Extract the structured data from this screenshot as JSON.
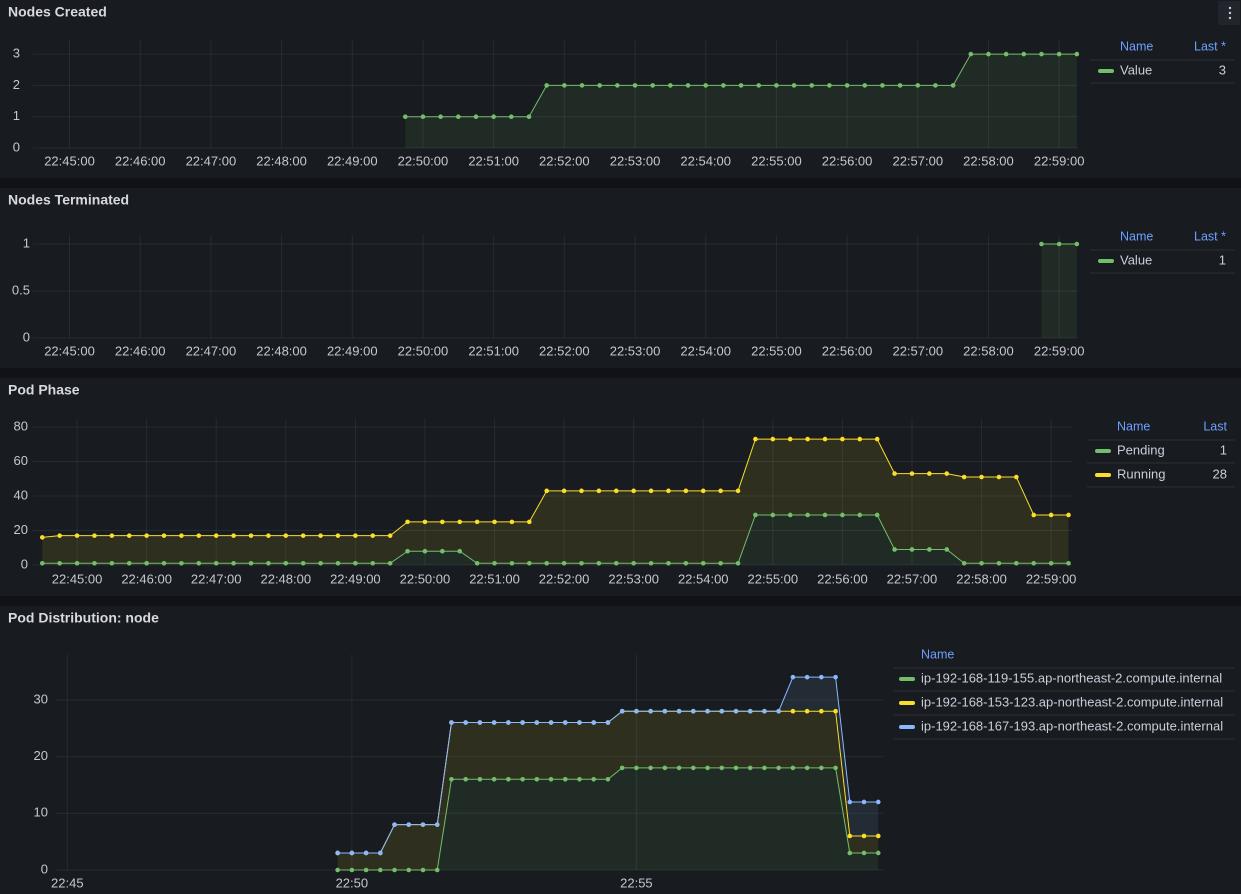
{
  "chart_data": [
    {
      "type": "line",
      "title": "Nodes Created",
      "stacked": false,
      "fill": true,
      "grid": true,
      "x": [
        "22:49:45",
        "22:50:00",
        "22:50:15",
        "22:50:30",
        "22:50:45",
        "22:51:00",
        "22:51:15",
        "22:51:30",
        "22:51:45",
        "22:52:00",
        "22:52:15",
        "22:52:30",
        "22:52:45",
        "22:53:00",
        "22:53:15",
        "22:53:30",
        "22:53:45",
        "22:54:00",
        "22:54:15",
        "22:54:30",
        "22:54:45",
        "22:55:00",
        "22:55:15",
        "22:55:30",
        "22:55:45",
        "22:56:00",
        "22:56:15",
        "22:56:30",
        "22:56:45",
        "22:57:00",
        "22:57:15",
        "22:57:30",
        "22:57:45",
        "22:58:00",
        "22:58:15",
        "22:58:30",
        "22:58:45",
        "22:59:00",
        "22:59:15"
      ],
      "series": [
        {
          "name": "Value",
          "color": "#73bf69",
          "last": 3,
          "values": [
            1,
            1,
            1,
            1,
            1,
            1,
            1,
            1,
            2,
            2,
            2,
            2,
            2,
            2,
            2,
            2,
            2,
            2,
            2,
            2,
            2,
            2,
            2,
            2,
            2,
            2,
            2,
            2,
            2,
            2,
            2,
            2,
            3,
            3,
            3,
            3,
            3,
            3,
            3
          ]
        }
      ],
      "xlim": [
        "22:44:29",
        "22:59:16"
      ],
      "xticks": [
        "22:45:00",
        "22:46:00",
        "22:47:00",
        "22:48:00",
        "22:49:00",
        "22:50:00",
        "22:51:00",
        "22:52:00",
        "22:53:00",
        "22:54:00",
        "22:55:00",
        "22:56:00",
        "22:57:00",
        "22:58:00",
        "22:59:00"
      ],
      "ylim": [
        0,
        3.45
      ],
      "yticks": [
        0,
        1,
        2,
        3
      ],
      "legend_position": "right",
      "legend_columns": [
        "Name",
        "Last *"
      ]
    },
    {
      "type": "line",
      "title": "Nodes Terminated",
      "stacked": false,
      "fill": true,
      "grid": true,
      "x": [
        "22:58:45",
        "22:59:00",
        "22:59:15"
      ],
      "series": [
        {
          "name": "Value",
          "color": "#73bf69",
          "last": 1,
          "values": [
            1,
            1,
            1
          ]
        }
      ],
      "xlim": [
        "22:44:29",
        "22:59:16"
      ],
      "xticks": [
        "22:45:00",
        "22:46:00",
        "22:47:00",
        "22:48:00",
        "22:49:00",
        "22:50:00",
        "22:51:00",
        "22:52:00",
        "22:53:00",
        "22:54:00",
        "22:55:00",
        "22:56:00",
        "22:57:00",
        "22:58:00",
        "22:59:00"
      ],
      "ylim": [
        0,
        1.1
      ],
      "yticks": [
        0,
        0.5,
        1
      ],
      "legend_position": "right",
      "legend_columns": [
        "Name",
        "Last *"
      ]
    },
    {
      "type": "line",
      "title": "Pod Phase",
      "stacked": true,
      "fill": true,
      "grid": true,
      "x": [
        "22:44:30",
        "22:44:45",
        "22:45:00",
        "22:45:15",
        "22:45:30",
        "22:45:45",
        "22:46:00",
        "22:46:15",
        "22:46:30",
        "22:46:45",
        "22:47:00",
        "22:47:15",
        "22:47:30",
        "22:47:45",
        "22:48:00",
        "22:48:15",
        "22:48:30",
        "22:48:45",
        "22:49:00",
        "22:49:15",
        "22:49:30",
        "22:49:45",
        "22:50:00",
        "22:50:15",
        "22:50:30",
        "22:50:45",
        "22:51:00",
        "22:51:15",
        "22:51:30",
        "22:51:45",
        "22:52:00",
        "22:52:15",
        "22:52:30",
        "22:52:45",
        "22:53:00",
        "22:53:15",
        "22:53:30",
        "22:53:45",
        "22:54:00",
        "22:54:15",
        "22:54:30",
        "22:54:45",
        "22:55:00",
        "22:55:15",
        "22:55:30",
        "22:55:45",
        "22:56:00",
        "22:56:15",
        "22:56:30",
        "22:56:45",
        "22:57:00",
        "22:57:15",
        "22:57:30",
        "22:57:45",
        "22:58:00",
        "22:58:15",
        "22:58:30",
        "22:58:45",
        "22:59:00",
        "22:59:15"
      ],
      "series": [
        {
          "name": "Pending",
          "color": "#73bf69",
          "last": 1,
          "values": [
            1,
            1,
            1,
            1,
            1,
            1,
            1,
            1,
            1,
            1,
            1,
            1,
            1,
            1,
            1,
            1,
            1,
            1,
            1,
            1,
            1,
            8,
            8,
            8,
            8,
            1,
            1,
            1,
            1,
            1,
            1,
            1,
            1,
            1,
            1,
            1,
            1,
            1,
            1,
            1,
            1,
            29,
            29,
            29,
            29,
            29,
            29,
            29,
            29,
            9,
            9,
            9,
            9,
            1,
            1,
            1,
            1,
            1,
            1,
            1
          ]
        },
        {
          "name": "Running",
          "color": "#fade2a",
          "last": 28,
          "values": [
            15,
            16,
            16,
            16,
            16,
            16,
            16,
            16,
            16,
            16,
            16,
            16,
            16,
            16,
            16,
            16,
            16,
            16,
            16,
            16,
            16,
            17,
            17,
            17,
            17,
            24,
            24,
            24,
            24,
            42,
            42,
            42,
            42,
            42,
            42,
            42,
            42,
            42,
            42,
            42,
            42,
            44,
            44,
            44,
            44,
            44,
            44,
            44,
            44,
            44,
            44,
            44,
            44,
            50,
            50,
            50,
            50,
            28,
            28,
            28
          ]
        }
      ],
      "xlim": [
        "22:44:22",
        "22:59:18"
      ],
      "xticks": [
        "22:45:00",
        "22:46:00",
        "22:47:00",
        "22:48:00",
        "22:49:00",
        "22:50:00",
        "22:51:00",
        "22:52:00",
        "22:53:00",
        "22:54:00",
        "22:55:00",
        "22:56:00",
        "22:57:00",
        "22:58:00",
        "22:59:00"
      ],
      "ylim": [
        0,
        85
      ],
      "yticks": [
        0,
        20,
        40,
        60,
        80
      ],
      "legend_position": "right",
      "legend_columns": [
        "Name",
        "Last"
      ]
    },
    {
      "type": "line",
      "title": "Pod Distribution: node",
      "stacked": true,
      "fill": true,
      "grid": true,
      "x": [
        "22:49:45",
        "22:50:00",
        "22:50:15",
        "22:50:30",
        "22:50:45",
        "22:51:00",
        "22:51:15",
        "22:51:30",
        "22:51:45",
        "22:52:00",
        "22:52:15",
        "22:52:30",
        "22:52:45",
        "22:53:00",
        "22:53:15",
        "22:53:30",
        "22:53:45",
        "22:54:00",
        "22:54:15",
        "22:54:30",
        "22:54:45",
        "22:55:00",
        "22:55:15",
        "22:55:30",
        "22:55:45",
        "22:56:00",
        "22:56:15",
        "22:56:30",
        "22:56:45",
        "22:57:00",
        "22:57:15",
        "22:57:30",
        "22:57:45",
        "22:58:00",
        "22:58:15",
        "22:58:30",
        "22:58:45",
        "22:59:00",
        "22:59:15"
      ],
      "series": [
        {
          "name": "ip-192-168-119-155.ap-northeast-2.compute.internal",
          "color": "#73bf69",
          "values": [
            0,
            0,
            0,
            0,
            0,
            0,
            0,
            0,
            16,
            16,
            16,
            16,
            16,
            16,
            16,
            16,
            16,
            16,
            16,
            16,
            18,
            18,
            18,
            18,
            18,
            18,
            18,
            18,
            18,
            18,
            18,
            18,
            18,
            18,
            18,
            18,
            3,
            3,
            3
          ]
        },
        {
          "name": "ip-192-168-153-123.ap-northeast-2.compute.internal",
          "color": "#fade2a",
          "values": [
            3,
            3,
            3,
            3,
            8,
            8,
            8,
            8,
            10,
            10,
            10,
            10,
            10,
            10,
            10,
            10,
            10,
            10,
            10,
            10,
            10,
            10,
            10,
            10,
            10,
            10,
            10,
            10,
            10,
            10,
            10,
            10,
            10,
            10,
            10,
            10,
            3,
            3,
            3
          ]
        },
        {
          "name": "ip-192-168-167-193.ap-northeast-2.compute.internal",
          "color": "#8ab8ff",
          "values": [
            0,
            0,
            0,
            0,
            0,
            0,
            0,
            0,
            0,
            0,
            0,
            0,
            0,
            0,
            0,
            0,
            0,
            0,
            0,
            0,
            0,
            0,
            0,
            0,
            0,
            0,
            0,
            0,
            0,
            0,
            0,
            0,
            6,
            6,
            6,
            6,
            6,
            6,
            6
          ]
        }
      ],
      "xlim": [
        "22:44:47",
        "22:59:20"
      ],
      "xticks": [
        "22:45",
        "22:50",
        "22:55"
      ],
      "ylim": [
        0,
        38
      ],
      "yticks": [
        0,
        10,
        20,
        30
      ],
      "legend_position": "right",
      "legend_columns": [
        "Name"
      ]
    }
  ]
}
